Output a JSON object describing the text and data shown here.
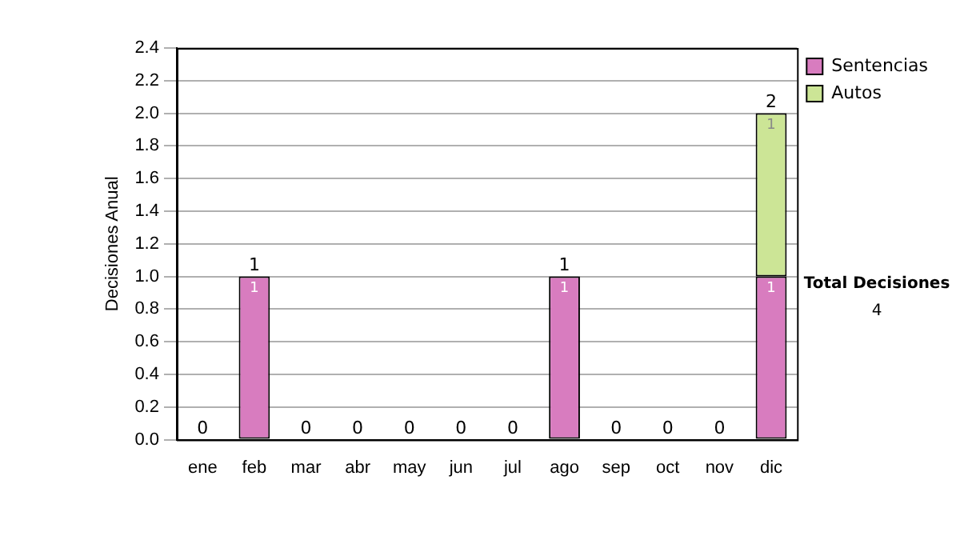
{
  "chart_data": {
    "type": "bar",
    "stacked": true,
    "ylabel": "Decisiones Anual",
    "categories": [
      "ene",
      "feb",
      "mar",
      "abr",
      "may",
      "jun",
      "jul",
      "ago",
      "sep",
      "oct",
      "nov",
      "dic"
    ],
    "series": [
      {
        "name": "Sentencias",
        "color": "#d87cbf",
        "values": [
          0,
          1,
          0,
          0,
          0,
          0,
          0,
          1,
          0,
          0,
          0,
          1
        ],
        "value_labels": [
          null,
          "1",
          null,
          null,
          null,
          null,
          null,
          "1",
          null,
          null,
          null,
          "1"
        ]
      },
      {
        "name": "Autos",
        "color": "#cce596",
        "values": [
          0,
          0,
          0,
          0,
          0,
          0,
          0,
          0,
          0,
          0,
          0,
          1
        ],
        "value_labels": [
          null,
          null,
          null,
          null,
          null,
          null,
          null,
          null,
          null,
          null,
          null,
          "1"
        ]
      }
    ],
    "totals": [
      "0",
      "1",
      "0",
      "0",
      "0",
      "0",
      "0",
      "1",
      "0",
      "0",
      "0",
      "2"
    ],
    "ylim": [
      0,
      2.4
    ],
    "yticks": [
      {
        "value": 0,
        "label": "0.0"
      },
      0.2,
      0.4,
      0.6,
      0.8,
      {
        "value": 1,
        "label": "1.0"
      },
      1.2,
      1.4,
      1.6,
      1.8,
      {
        "value": 2,
        "label": "2.0"
      },
      2.2,
      2.4
    ],
    "grid": "y",
    "legend": "right",
    "annotations": [
      "Total Decisiones",
      "4"
    ]
  }
}
